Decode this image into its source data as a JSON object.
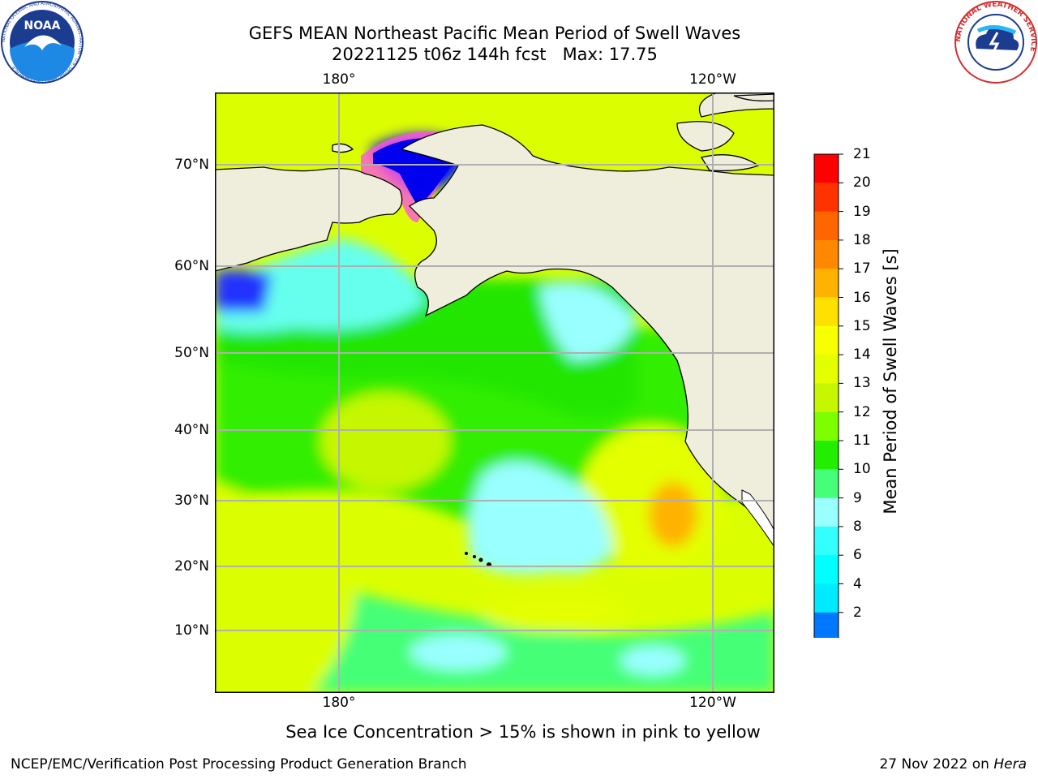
{
  "title_line1": "GEFS MEAN Northeast Pacific Mean Period of Swell Waves",
  "title_line2": "20221125 t06z 144h fcst   Max: 17.75",
  "lon_labels_top": [
    "180°",
    "120°W"
  ],
  "lon_labels_bottom": [
    "180°",
    "120°W"
  ],
  "lat_labels": [
    "70°N",
    "60°N",
    "50°N",
    "40°N",
    "30°N",
    "20°N",
    "10°N"
  ],
  "colorbar": {
    "label": "Mean Period of Swell Waves [s]",
    "ticks": [
      "21",
      "20",
      "19",
      "18",
      "17",
      "16",
      "15",
      "14",
      "13",
      "12",
      "11",
      "10",
      "9",
      "8",
      "6",
      "4",
      "2"
    ],
    "colors": [
      "#ff0000",
      "#ff3300",
      "#ff6600",
      "#ff8800",
      "#ffb300",
      "#ffe100",
      "#f7ff00",
      "#e3ff00",
      "#c6f700",
      "#7dff00",
      "#22ee00",
      "#44ff77",
      "#99ffff",
      "#33ffff",
      "#00ffff",
      "#00eaff",
      "#0077ff"
    ],
    "extend_color": "#0000ff"
  },
  "caption": "Sea Ice Concentration > 15% is shown in pink to yellow",
  "footer_left": "NCEP/EMC/Verification Post Processing Product Generation Branch",
  "footer_right_prefix": "27 Nov 2022 on ",
  "footer_right_host": "Hera",
  "logos": {
    "left": {
      "name": "noaa-logo",
      "text": "NOAA",
      "ring": "NATIONAL OCEANIC AND ATMOSPHERIC ADMINISTRATION · U.S. DEPARTMENT OF COMMERCE"
    },
    "right": {
      "name": "nws-logo",
      "ring": "NATIONAL WEATHER SERVICE"
    }
  }
}
